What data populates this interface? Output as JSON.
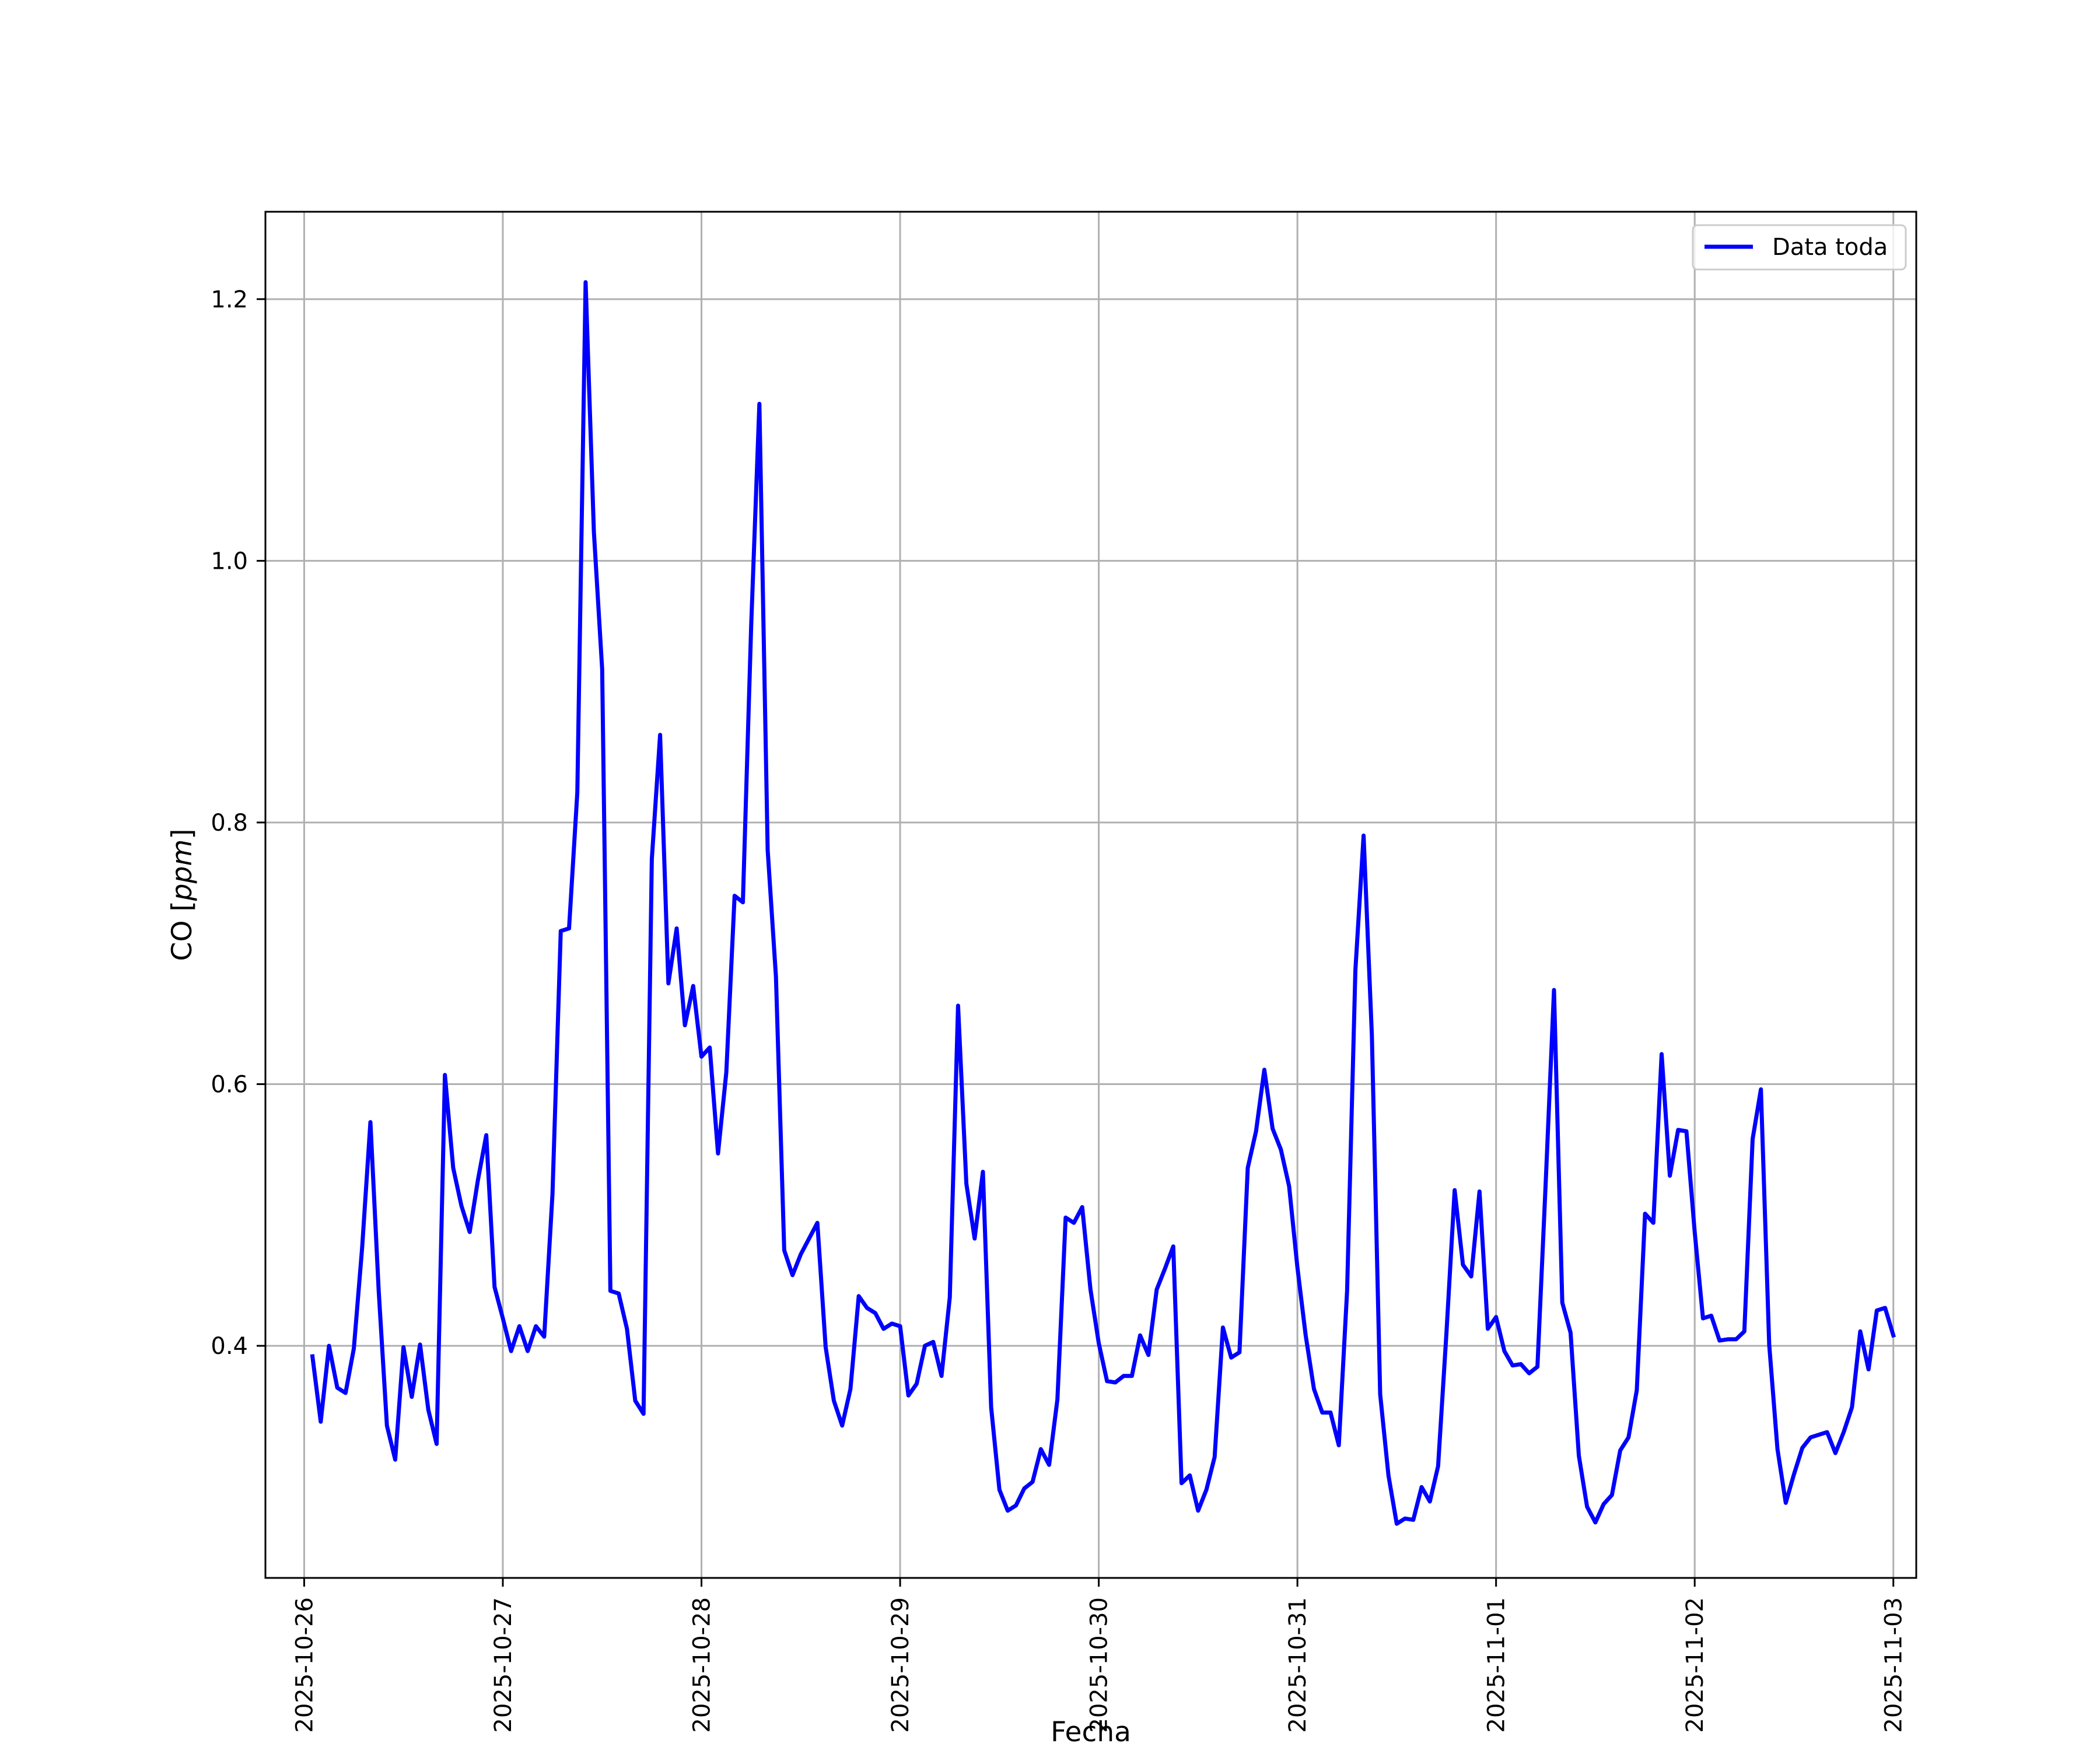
{
  "chart_data": {
    "type": "line",
    "xlabel": "Fecha",
    "ylabel_prefix": "CO [",
    "ylabel_unit": "ppm",
    "ylabel_suffix": "]",
    "grid": true,
    "legend_position": "top-right",
    "x_range": [
      "2025-10-25T19:19",
      "2025-11-03T02:46"
    ],
    "ylim": [
      0.2226,
      1.2668
    ],
    "x_ticks": [
      "2025-10-26",
      "2025-10-27",
      "2025-10-28",
      "2025-10-29",
      "2025-10-30",
      "2025-10-31",
      "2025-11-01",
      "2025-11-02",
      "2025-11-03"
    ],
    "y_ticks": [
      "0.4",
      "0.6",
      "0.8",
      "1.0",
      "1.2"
    ],
    "series": [
      {
        "name": "Data toda",
        "color": "#0000ff",
        "start": "2025-10-26T01:00",
        "step_hours": 1,
        "values": [
          0.392,
          0.342,
          0.4,
          0.368,
          0.364,
          0.398,
          0.475,
          0.571,
          0.442,
          0.339,
          0.313,
          0.399,
          0.361,
          0.401,
          0.351,
          0.325,
          0.607,
          0.536,
          0.507,
          0.487,
          0.527,
          0.561,
          0.445,
          0.421,
          0.396,
          0.415,
          0.396,
          0.415,
          0.407,
          0.516,
          0.717,
          0.719,
          0.823,
          1.213,
          1.022,
          0.917,
          0.442,
          0.44,
          0.413,
          0.358,
          0.348,
          0.772,
          0.867,
          0.677,
          0.719,
          0.645,
          0.675,
          0.621,
          0.628,
          0.547,
          0.609,
          0.744,
          0.739,
          0.95,
          1.12,
          0.779,
          0.682,
          0.473,
          0.454,
          0.47,
          0.482,
          0.494,
          0.399,
          0.358,
          0.339,
          0.367,
          0.438,
          0.429,
          0.425,
          0.413,
          0.417,
          0.415,
          0.362,
          0.371,
          0.4,
          0.403,
          0.377,
          0.437,
          0.66,
          0.524,
          0.482,
          0.533,
          0.353,
          0.29,
          0.274,
          0.278,
          0.291,
          0.296,
          0.321,
          0.309,
          0.359,
          0.498,
          0.494,
          0.506,
          0.443,
          0.402,
          0.373,
          0.372,
          0.377,
          0.377,
          0.408,
          0.393,
          0.443,
          0.459,
          0.476,
          0.295,
          0.301,
          0.274,
          0.29,
          0.315,
          0.414,
          0.391,
          0.395,
          0.536,
          0.564,
          0.611,
          0.566,
          0.55,
          0.522,
          0.46,
          0.408,
          0.367,
          0.349,
          0.349,
          0.324,
          0.442,
          0.687,
          0.79,
          0.637,
          0.363,
          0.301,
          0.264,
          0.268,
          0.267,
          0.292,
          0.281,
          0.308,
          0.409,
          0.519,
          0.462,
          0.453,
          0.518,
          0.413,
          0.422,
          0.396,
          0.385,
          0.386,
          0.379,
          0.384,
          0.525,
          0.672,
          0.433,
          0.41,
          0.316,
          0.277,
          0.265,
          0.279,
          0.286,
          0.32,
          0.33,
          0.366,
          0.501,
          0.494,
          0.623,
          0.53,
          0.565,
          0.564,
          0.487,
          0.421,
          0.423,
          0.404,
          0.405,
          0.405,
          0.411,
          0.558,
          0.596,
          0.401,
          0.321,
          0.28,
          0.302,
          0.322,
          0.33,
          0.332,
          0.334,
          0.318,
          0.334,
          0.353,
          0.411,
          0.382,
          0.427,
          0.429,
          0.408
        ]
      }
    ]
  }
}
